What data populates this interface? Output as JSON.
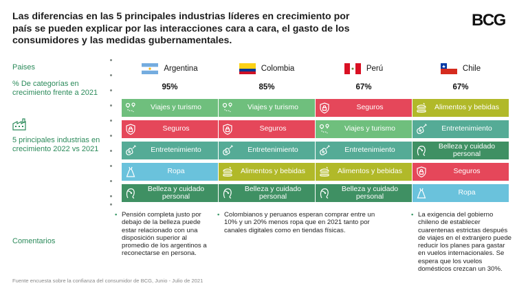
{
  "title": "Las diferencias en las 5 principales industrias líderes en crecimiento por país se pueden explicar por las interacciones cara a cara, el gasto de los consumidores y las medidas gubernamentales.",
  "logo": "BCG",
  "labels": {
    "paises": "Paises",
    "pct": "% De categorías en crecimiento frente a 2021",
    "industries": "5 principales industrias en crecimiento 2022 vs 2021",
    "comments": "Comentarios"
  },
  "countries": [
    {
      "name": "Argentina",
      "pct": "95%",
      "cells": [
        {
          "label": "Viajes y turismo",
          "color": "#6fbf7d",
          "icon": "travel-route-icon"
        },
        {
          "label": "Seguros",
          "color": "#e5475a",
          "icon": "shield-lock-icon"
        },
        {
          "label": "Entretenimiento",
          "color": "#55ab96",
          "icon": "guitar-icon"
        },
        {
          "label": "Ropa",
          "color": "#6ac2dc",
          "icon": "dress-icon"
        },
        {
          "label": "Belleza y cuidado personal",
          "color": "#3f9063",
          "icon": "face-icon"
        }
      ],
      "comment": "Pensión completa justo por debajo de la belleza puede estar relacionado con una disposición superior al promedio de los argentinos a reconectarse en persona."
    },
    {
      "name": "Colombia",
      "pct": "85%",
      "cells": [
        {
          "label": "Viajes y turismo",
          "color": "#6fbf7d",
          "icon": "travel-route-icon"
        },
        {
          "label": "Seguros",
          "color": "#e5475a",
          "icon": "shield-lock-icon"
        },
        {
          "label": "Entretenimiento",
          "color": "#55ab96",
          "icon": "guitar-icon"
        },
        {
          "label": "Alimentos y bebidas",
          "color": "#b1b929",
          "icon": "burger-icon"
        },
        {
          "label": "Belleza y cuidado personal",
          "color": "#3f9063",
          "icon": "face-icon"
        }
      ],
      "comment": "Colombianos y peruanos esperan comprar entre un 10% y un 20% menos ropa que en 2021 tanto por canales digitales como en tiendas físicas."
    },
    {
      "name": "Perú",
      "pct": "67%",
      "cells": [
        {
          "label": "Seguros",
          "color": "#e5475a",
          "icon": "shield-lock-icon"
        },
        {
          "label": "Viajes y turismo",
          "color": "#6fbf7d",
          "icon": "travel-route-icon"
        },
        {
          "label": "Entretenimiento",
          "color": "#55ab96",
          "icon": "guitar-icon"
        },
        {
          "label": "Alimentos y bebidas",
          "color": "#b1b929",
          "icon": "burger-icon"
        },
        {
          "label": "Belleza y cuidado personal",
          "color": "#3f9063",
          "icon": "face-icon"
        }
      ],
      "comment": ""
    },
    {
      "name": "Chile",
      "pct": "67%",
      "cells": [
        {
          "label": "Alimentos y bebidas",
          "color": "#b1b929",
          "icon": "burger-icon"
        },
        {
          "label": "Entretenimiento",
          "color": "#55ab96",
          "icon": "guitar-icon"
        },
        {
          "label": "Belleza y cuidado personal",
          "color": "#3f9063",
          "icon": "face-icon"
        },
        {
          "label": "Seguros",
          "color": "#e5475a",
          "icon": "shield-lock-icon"
        },
        {
          "label": "Ropa",
          "color": "#6ac2dc",
          "icon": "dress-icon"
        }
      ],
      "comment": "La exigencia del gobierno chileno de establecer cuarentenas estrictas después de viajes en el extranjero puede reducir los planes para gastar en vuelos internacionales. Se espera que los vuelos domésticos crezcan un 30%."
    }
  ],
  "footer": "Fuente encuesta sobre la confianza del consumidor de BCG, Junio - Julio de 2021"
}
